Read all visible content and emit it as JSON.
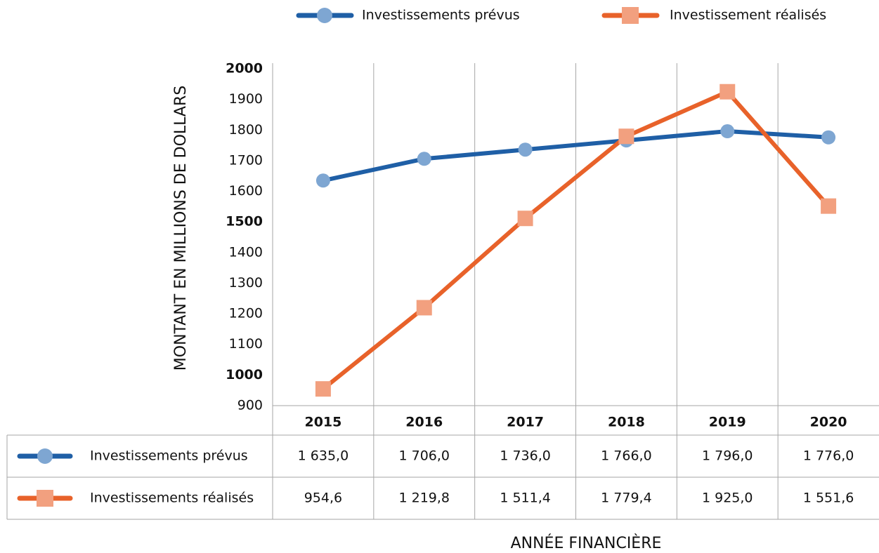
{
  "chart_data": {
    "type": "line",
    "y_axis_label": "MONTANT EN MILLIONS DE DOLLARS",
    "x_axis_label": "ANNÉE FINANCIÈRE",
    "categories": [
      "2015",
      "2016",
      "2017",
      "2018",
      "2019",
      "2020"
    ],
    "series": [
      {
        "name": "Investissements prévus",
        "color": "#1f5fa6",
        "marker_color": "#7ea6d2",
        "marker": "circle",
        "values": [
          1635,
          1706,
          1736,
          1766,
          1796,
          1776
        ],
        "value_labels": [
          "1 635,0",
          "1 706,0",
          "1 736,0",
          "1 766,0",
          "1 796,0",
          "1 776,0"
        ]
      },
      {
        "name": "Investissement réalisés",
        "color": "#e8622a",
        "marker_color": "#f2a07f",
        "marker": "square",
        "values": [
          954.6,
          1219.8,
          1511.4,
          1779.4,
          1925.0,
          1551.6
        ],
        "value_labels": [
          "954,6",
          "1 219,8",
          "1 511,4",
          "1 779,4",
          "1 925,0",
          "1 551,6"
        ]
      }
    ],
    "table_row_labels": [
      "Investissements prévus",
      "Investissements réalisés"
    ],
    "ylim": [
      900,
      2000
    ],
    "yticks": [
      900,
      1000,
      1100,
      1200,
      1300,
      1400,
      1500,
      1600,
      1700,
      1800,
      1900,
      2000
    ],
    "grid": "vertical",
    "legend": "top"
  }
}
